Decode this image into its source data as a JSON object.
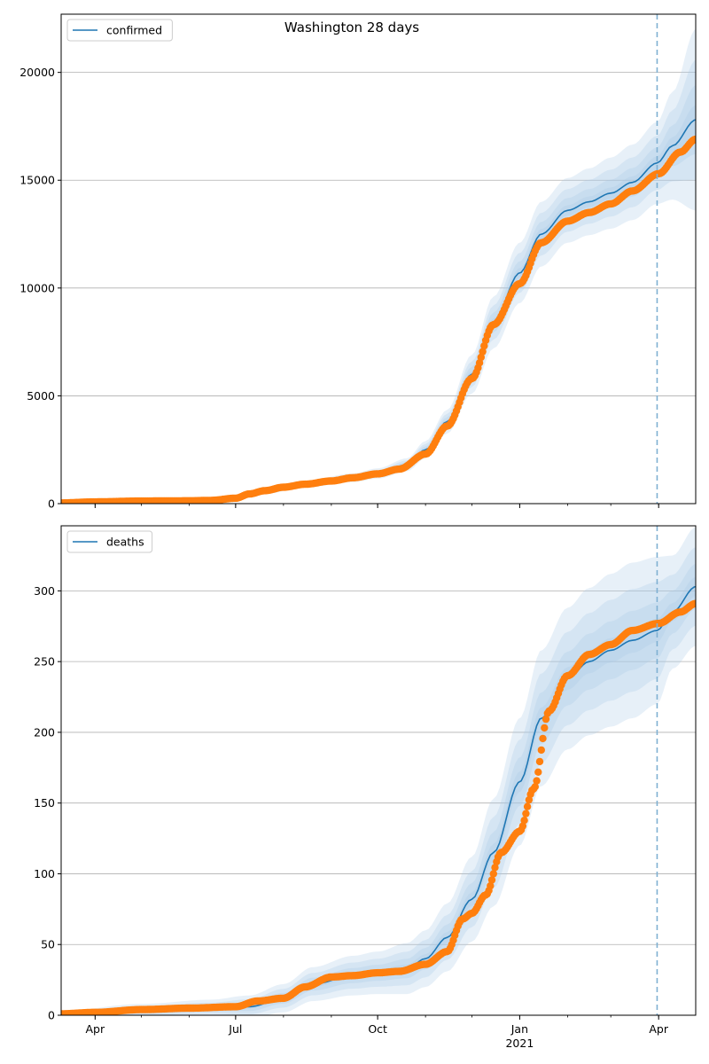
{
  "figure_title": "Washington 28 days",
  "colors": {
    "model": "#1f77b4",
    "band": "#a9c8e6",
    "observed": "#ff7f0e",
    "grid": "#b0b0b0",
    "forecast_line": "#7fb0d2"
  },
  "x_axis": {
    "start": "2020-03-10",
    "end": "2021-04-25",
    "tick_labels": [
      {
        "date": "2020-04-01",
        "label": "Apr"
      },
      {
        "date": "2020-07-01",
        "label": "Jul"
      },
      {
        "date": "2020-10-01",
        "label": "Oct"
      },
      {
        "date": "2021-01-01",
        "label": "Jan",
        "sublabel": "2021"
      },
      {
        "date": "2021-04-01",
        "label": "Apr"
      }
    ],
    "forecast_start": "2021-03-31"
  },
  "chart_data": [
    {
      "type": "line",
      "legend": "confirmed",
      "legend_position": "top-left",
      "grid": "horizontal",
      "ylim": [
        0,
        22700
      ],
      "yticks": [
        0,
        5000,
        10000,
        15000,
        20000
      ],
      "model": {
        "x": [
          "2020-03-10",
          "2020-05-01",
          "2020-06-15",
          "2020-07-01",
          "2020-07-20",
          "2020-08-15",
          "2020-09-15",
          "2020-10-01",
          "2020-10-20",
          "2020-11-01",
          "2020-11-15",
          "2020-12-01",
          "2020-12-15",
          "2021-01-01",
          "2021-01-15",
          "2021-02-01",
          "2021-02-15",
          "2021-03-01",
          "2021-03-15",
          "2021-03-31",
          "2021-04-10",
          "2021-04-25"
        ],
        "y": [
          0,
          60,
          160,
          260,
          550,
          900,
          1200,
          1400,
          1800,
          2500,
          3800,
          6000,
          8400,
          10700,
          12500,
          13600,
          14000,
          14400,
          14900,
          15800,
          16600,
          17800
        ],
        "band_halfwidth": [
          5,
          20,
          40,
          60,
          100,
          150,
          200,
          240,
          300,
          400,
          550,
          900,
          1200,
          1400,
          1500,
          1500,
          1550,
          1650,
          1750,
          1900,
          2500,
          4200
        ]
      },
      "observed": {
        "x": [
          "2020-03-10",
          "2020-04-01",
          "2020-05-01",
          "2020-06-01",
          "2020-06-15",
          "2020-07-01",
          "2020-07-10",
          "2020-07-20",
          "2020-08-01",
          "2020-08-15",
          "2020-09-01",
          "2020-09-15",
          "2020-10-01",
          "2020-10-15",
          "2020-11-01",
          "2020-11-15",
          "2020-12-01",
          "2020-12-15",
          "2021-01-01",
          "2021-01-15",
          "2021-02-01",
          "2021-02-15",
          "2021-03-01",
          "2021-03-15",
          "2021-04-01",
          "2021-04-15",
          "2021-04-25"
        ],
        "y": [
          30,
          80,
          120,
          130,
          150,
          250,
          450,
          600,
          760,
          900,
          1050,
          1200,
          1380,
          1600,
          2300,
          3600,
          5800,
          8300,
          10200,
          12100,
          13100,
          13500,
          13900,
          14500,
          15300,
          16300,
          16900
        ]
      }
    },
    {
      "type": "line",
      "legend": "deaths",
      "legend_position": "top-left",
      "grid": "horizontal",
      "ylim": [
        0,
        346
      ],
      "yticks": [
        0,
        50,
        100,
        150,
        200,
        250,
        300
      ],
      "model": {
        "x": [
          "2020-03-10",
          "2020-05-01",
          "2020-06-15",
          "2020-07-10",
          "2020-08-01",
          "2020-08-20",
          "2020-09-15",
          "2020-10-01",
          "2020-10-20",
          "2020-11-01",
          "2020-11-15",
          "2020-12-01",
          "2020-12-15",
          "2021-01-01",
          "2021-01-15",
          "2021-02-01",
          "2021-02-15",
          "2021-03-01",
          "2021-03-15",
          "2021-03-31",
          "2021-04-10",
          "2021-04-25"
        ],
        "y": [
          0,
          3,
          5,
          6,
          12,
          22,
          28,
          30,
          33,
          40,
          55,
          82,
          115,
          165,
          210,
          238,
          250,
          258,
          265,
          272,
          285,
          303
        ],
        "band_halfwidth": [
          3,
          5,
          6,
          8,
          10,
          12,
          14,
          15,
          18,
          20,
          24,
          30,
          38,
          45,
          48,
          50,
          52,
          54,
          55,
          52,
          40,
          42
        ]
      },
      "observed": {
        "x": [
          "2020-03-10",
          "2020-04-01",
          "2020-05-01",
          "2020-06-01",
          "2020-07-01",
          "2020-07-15",
          "2020-08-01",
          "2020-08-15",
          "2020-09-01",
          "2020-09-15",
          "2020-10-01",
          "2020-10-15",
          "2020-11-01",
          "2020-11-15",
          "2020-11-25",
          "2020-12-01",
          "2020-12-10",
          "2020-12-20",
          "2021-01-01",
          "2021-01-10",
          "2021-01-20",
          "2021-02-01",
          "2021-02-15",
          "2021-03-01",
          "2021-03-15",
          "2021-04-01",
          "2021-04-15",
          "2021-04-25"
        ],
        "y": [
          1,
          2,
          4,
          5,
          6,
          10,
          12,
          20,
          27,
          28,
          30,
          31,
          36,
          45,
          68,
          72,
          85,
          115,
          130,
          160,
          215,
          240,
          255,
          262,
          272,
          277,
          285,
          291
        ]
      }
    }
  ]
}
